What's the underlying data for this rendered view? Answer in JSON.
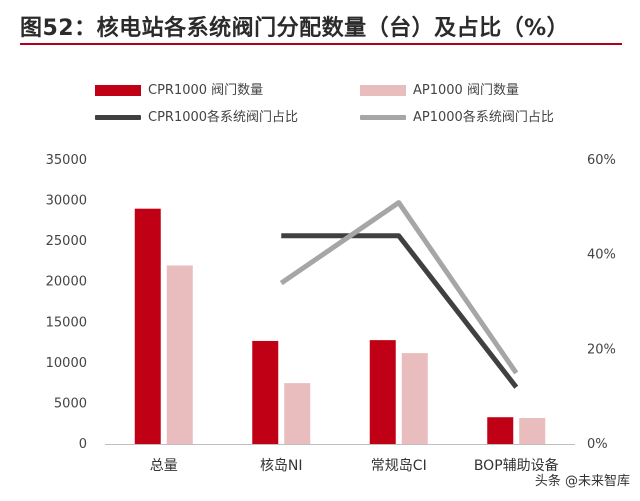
{
  "title": "图52：核电站各系统阀门分配数量（台）及占比（%）",
  "watermark": "头条 @未来智库",
  "colors": {
    "cpr_bar": "#c00015",
    "ap_bar": "#e9bcbd",
    "cpr_line": "#404040",
    "ap_line": "#a6a6a6",
    "accent": "#b0001f"
  },
  "legend": [
    {
      "label": "CPR1000 阀门数量",
      "kind": "bar",
      "color": "#c00015"
    },
    {
      "label": "AP1000 阀门数量",
      "kind": "bar",
      "color": "#e9bcbd"
    },
    {
      "label": "CPR1000各系统阀门占比",
      "kind": "line",
      "color": "#404040"
    },
    {
      "label": "AP1000各系统阀门占比",
      "kind": "line",
      "color": "#a6a6a6"
    }
  ],
  "chart_data": {
    "type": "bar",
    "categories": [
      "总量",
      "核岛NI",
      "常规岛CI",
      "BOP辅助设备"
    ],
    "series": [
      {
        "name": "CPR1000 阀门数量",
        "type": "bar",
        "axis": "left",
        "values": [
          29000,
          12700,
          12800,
          3300
        ]
      },
      {
        "name": "AP1000 阀门数量",
        "type": "bar",
        "axis": "left",
        "values": [
          22000,
          7500,
          11200,
          3200
        ]
      },
      {
        "name": "CPR1000各系统阀门占比",
        "type": "line",
        "axis": "right",
        "values": [
          null,
          44,
          44,
          12
        ]
      },
      {
        "name": "AP1000各系统阀门占比",
        "type": "line",
        "axis": "right",
        "values": [
          null,
          34,
          51,
          15
        ]
      }
    ],
    "y_left": {
      "min": 0,
      "max": 35000,
      "ticks": [
        0,
        5000,
        10000,
        15000,
        20000,
        25000,
        30000,
        35000
      ]
    },
    "y_right": {
      "min": 0,
      "max": 60,
      "ticks": [
        "0%",
        "20%",
        "40%",
        "60%"
      ],
      "tick_values": [
        0,
        20,
        40,
        60
      ]
    },
    "legend_position": "top",
    "grid": false
  }
}
